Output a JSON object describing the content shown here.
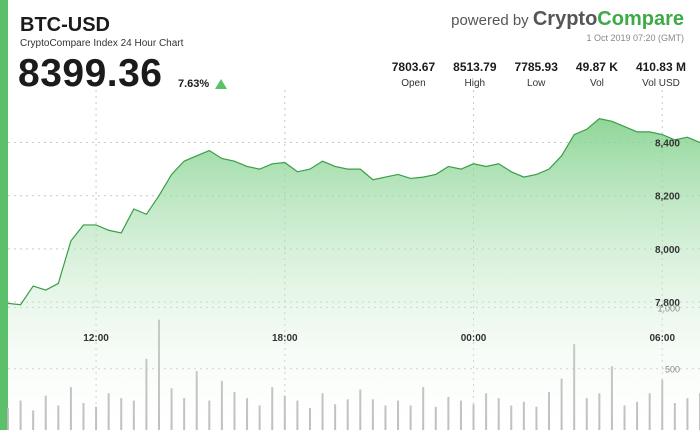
{
  "header": {
    "pair": "BTC-USD",
    "subtitle": "CryptoCompare Index 24 Hour Chart",
    "price": "8399.36",
    "change": "7.63%",
    "powered_prefix": "powered by ",
    "brand_a": "Crypto",
    "brand_b": "Compare",
    "timestamp": "1 Oct 2019 07:20 (GMT)"
  },
  "stats": [
    {
      "value": "7803.67",
      "label": "Open"
    },
    {
      "value": "8513.79",
      "label": "High"
    },
    {
      "value": "7785.93",
      "label": "Low"
    },
    {
      "value": "49.87 K",
      "label": "Vol"
    },
    {
      "value": "410.83 M",
      "label": "Vol USD"
    }
  ],
  "colors": {
    "accent": "#5cbf6a",
    "line": "#3a9e46",
    "fill_top": "#7ccf86",
    "up_arrow": "#5cbf6a",
    "volume": "#b8b8b8",
    "grid": "#c9c9c9",
    "brand_green": "#3daa47"
  },
  "chart_data": {
    "type": "area",
    "x_label_hours": [
      "12:00",
      "18:00",
      "00:00",
      "06:00"
    ],
    "x": [
      9.2,
      9.6,
      10.0,
      10.4,
      10.8,
      11.2,
      11.6,
      12.0,
      12.4,
      12.8,
      13.2,
      13.6,
      14.0,
      14.4,
      14.8,
      15.2,
      15.6,
      16.0,
      16.4,
      16.8,
      17.2,
      17.6,
      18.0,
      18.4,
      18.8,
      19.2,
      19.6,
      20.0,
      20.4,
      20.8,
      21.2,
      21.6,
      22.0,
      22.4,
      22.8,
      23.2,
      23.6,
      24.0,
      24.4,
      24.8,
      25.2,
      25.6,
      26.0,
      26.4,
      26.8,
      27.2,
      27.6,
      28.0,
      28.4,
      28.8,
      29.2,
      29.6,
      30.0,
      30.4,
      30.8,
      31.2
    ],
    "price": [
      7795,
      7790,
      7860,
      7845,
      7870,
      8030,
      8090,
      8090,
      8070,
      8060,
      8150,
      8130,
      8200,
      8280,
      8330,
      8350,
      8370,
      8340,
      8330,
      8310,
      8300,
      8320,
      8325,
      8290,
      8300,
      8330,
      8310,
      8300,
      8300,
      8260,
      8270,
      8280,
      8265,
      8270,
      8280,
      8310,
      8300,
      8320,
      8310,
      8320,
      8290,
      8270,
      8280,
      8300,
      8350,
      8430,
      8450,
      8490,
      8480,
      8460,
      8440,
      8440,
      8430,
      8410,
      8420,
      8400
    ],
    "volume": [
      180,
      240,
      160,
      280,
      200,
      350,
      220,
      190,
      300,
      260,
      240,
      580,
      900,
      340,
      260,
      480,
      240,
      400,
      310,
      260,
      200,
      350,
      280,
      240,
      180,
      300,
      210,
      250,
      330,
      250,
      200,
      240,
      200,
      350,
      190,
      270,
      240,
      210,
      300,
      260,
      200,
      230,
      190,
      310,
      420,
      700,
      260,
      300,
      520,
      200,
      230,
      300,
      410,
      220,
      260,
      300
    ],
    "y_ticks": [
      7800,
      8000,
      8200,
      8400
    ],
    "y_tick_labels": [
      "7,800",
      "8,000",
      "8,200",
      "8,400"
    ],
    "ylim": [
      7740,
      8560
    ],
    "volume_ticks": [
      500,
      1000
    ],
    "volume_tick_labels": [
      "500",
      "1,000"
    ],
    "volume_lim": [
      0,
      1550
    ],
    "grid": true
  }
}
